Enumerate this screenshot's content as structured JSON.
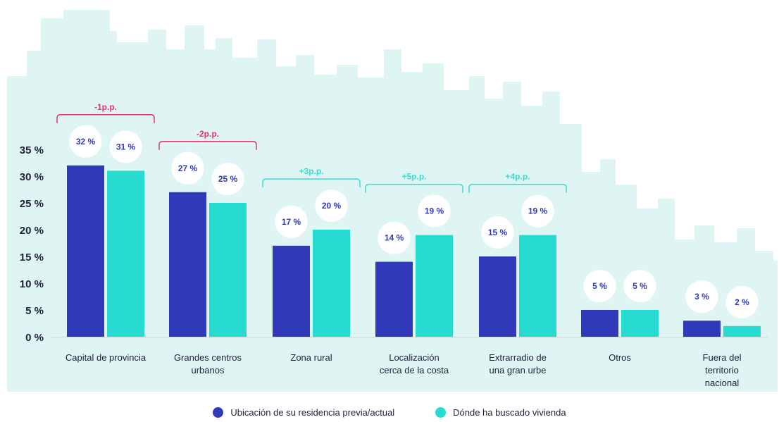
{
  "colors": {
    "series1": "#3039b9",
    "series2": "#28dbd0",
    "negative_diff": "#e0336f",
    "positive_diff": "#3fd9cf",
    "value_label": "#3039b9",
    "background_skyline": "#dff5f4",
    "axis_text": "#1f1f3a"
  },
  "chart_data": {
    "type": "bar",
    "categories": [
      "Capital de provincia",
      "Grandes centros urbanos",
      "Zona rural",
      "Localización cerca de la costa",
      "Extrarradio de una gran urbe",
      "Otros",
      "Fuera del territorio nacional"
    ],
    "category_lines": [
      [
        "Capital de provincia"
      ],
      [
        "Grandes centros",
        "urbanos"
      ],
      [
        "Zona rural"
      ],
      [
        "Localización",
        "cerca de la costa"
      ],
      [
        "Extrarradio de",
        "una gran urbe"
      ],
      [
        "Otros"
      ],
      [
        "Fuera del",
        "territorio",
        "nacional"
      ]
    ],
    "series": [
      {
        "name": "Ubicación de su residencia previa/actual",
        "values": [
          32,
          27,
          17,
          14,
          15,
          5,
          3
        ],
        "labels": [
          "32 %",
          "27 %",
          "17 %",
          "14 %",
          "15 %",
          "5 %",
          "3 %"
        ]
      },
      {
        "name": "Dónde ha buscado vivienda",
        "values": [
          31,
          25,
          20,
          19,
          19,
          5,
          2
        ],
        "labels": [
          "31 %",
          "25 %",
          "20 %",
          "19 %",
          "19 %",
          "5 %",
          "2 %"
        ]
      }
    ],
    "differences": [
      "-1p.p.",
      "-2p.p.",
      "+3p.p.",
      "+5p.p.",
      "+4p.p.",
      null,
      null
    ],
    "difference_signs": [
      "negative",
      "negative",
      "positive",
      "positive",
      "positive",
      null,
      null
    ],
    "y_ticks": [
      0,
      5,
      10,
      15,
      20,
      25,
      30,
      35
    ],
    "y_tick_labels": [
      "0 %",
      "5 %",
      "10 %",
      "15 %",
      "20 %",
      "25 %",
      "30 %",
      "35 %"
    ],
    "ylim": [
      0,
      35
    ],
    "title": "",
    "xlabel": "",
    "ylabel": "",
    "grid": false,
    "legend_position": "bottom-center"
  }
}
